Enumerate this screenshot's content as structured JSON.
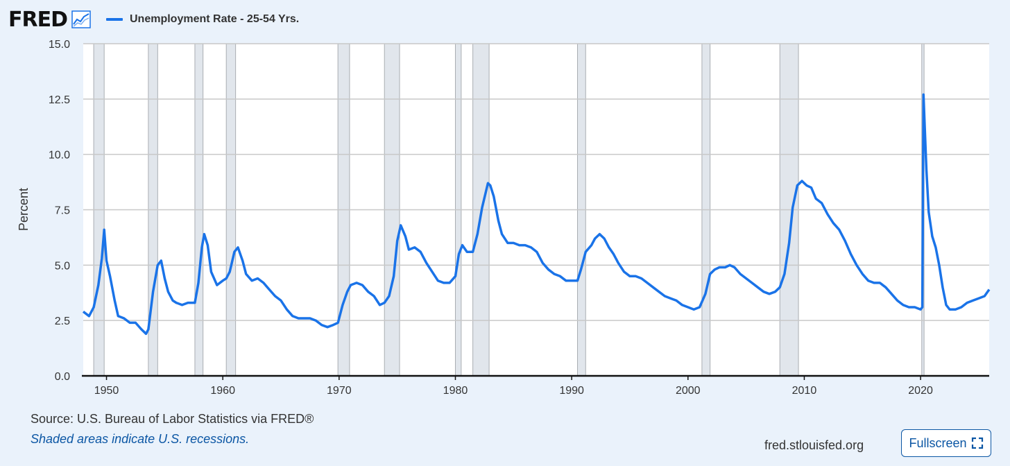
{
  "header": {
    "logo_text": "FRED",
    "logo_icon": "chart-line-icon",
    "legend_label": "Unemployment Rate - 25-54 Yrs."
  },
  "colors": {
    "series": "#1a73e8",
    "recession": "#e1e6ec",
    "background": "#eaf2fb",
    "plot": "#ffffff",
    "grid": "#c8c8c8"
  },
  "chart_data": {
    "type": "line",
    "title": "",
    "xlabel": "",
    "ylabel": "Percent",
    "xlim": [
      1948,
      2025.9
    ],
    "ylim": [
      0,
      15
    ],
    "y_ticks": [
      "0.0",
      "2.5",
      "5.0",
      "7.5",
      "10.0",
      "12.5",
      "15.0"
    ],
    "x_ticks": [
      "1950",
      "1960",
      "1970",
      "1980",
      "1990",
      "2000",
      "2010",
      "2020"
    ],
    "grid": true,
    "legend": "top-left",
    "recessions": [
      [
        1948.9,
        1949.8
      ],
      [
        1953.6,
        1954.4
      ],
      [
        1957.6,
        1958.3
      ],
      [
        1960.3,
        1961.1
      ],
      [
        1969.9,
        1970.9
      ],
      [
        1973.9,
        1975.2
      ],
      [
        1980.0,
        1980.5
      ],
      [
        1981.5,
        1982.9
      ],
      [
        1990.5,
        1991.2
      ],
      [
        2001.2,
        2001.9
      ],
      [
        2007.9,
        2009.5
      ],
      [
        2020.1,
        2020.3
      ]
    ],
    "series": [
      {
        "name": "Unemployment Rate - 25-54 Yrs.",
        "points": [
          [
            1948.0,
            2.9
          ],
          [
            1948.5,
            2.7
          ],
          [
            1948.9,
            3.1
          ],
          [
            1949.3,
            4.1
          ],
          [
            1949.6,
            5.3
          ],
          [
            1949.8,
            6.6
          ],
          [
            1950.0,
            5.2
          ],
          [
            1950.3,
            4.5
          ],
          [
            1950.7,
            3.4
          ],
          [
            1951.0,
            2.7
          ],
          [
            1951.5,
            2.6
          ],
          [
            1952.0,
            2.4
          ],
          [
            1952.5,
            2.4
          ],
          [
            1953.0,
            2.1
          ],
          [
            1953.4,
            1.9
          ],
          [
            1953.6,
            2.1
          ],
          [
            1954.0,
            3.8
          ],
          [
            1954.4,
            5.0
          ],
          [
            1954.7,
            5.2
          ],
          [
            1955.0,
            4.4
          ],
          [
            1955.3,
            3.8
          ],
          [
            1955.7,
            3.4
          ],
          [
            1956.0,
            3.3
          ],
          [
            1956.5,
            3.2
          ],
          [
            1957.0,
            3.3
          ],
          [
            1957.6,
            3.3
          ],
          [
            1957.9,
            4.2
          ],
          [
            1958.2,
            5.8
          ],
          [
            1958.4,
            6.4
          ],
          [
            1958.7,
            5.9
          ],
          [
            1959.0,
            4.7
          ],
          [
            1959.5,
            4.1
          ],
          [
            1960.0,
            4.3
          ],
          [
            1960.3,
            4.4
          ],
          [
            1960.6,
            4.7
          ],
          [
            1961.0,
            5.6
          ],
          [
            1961.3,
            5.8
          ],
          [
            1961.7,
            5.2
          ],
          [
            1962.0,
            4.6
          ],
          [
            1962.5,
            4.3
          ],
          [
            1963.0,
            4.4
          ],
          [
            1963.5,
            4.2
          ],
          [
            1964.0,
            3.9
          ],
          [
            1964.5,
            3.6
          ],
          [
            1965.0,
            3.4
          ],
          [
            1965.5,
            3.0
          ],
          [
            1966.0,
            2.7
          ],
          [
            1966.5,
            2.6
          ],
          [
            1967.0,
            2.6
          ],
          [
            1967.5,
            2.6
          ],
          [
            1968.0,
            2.5
          ],
          [
            1968.5,
            2.3
          ],
          [
            1969.0,
            2.2
          ],
          [
            1969.5,
            2.3
          ],
          [
            1969.9,
            2.4
          ],
          [
            1970.3,
            3.2
          ],
          [
            1970.7,
            3.8
          ],
          [
            1971.0,
            4.1
          ],
          [
            1971.5,
            4.2
          ],
          [
            1972.0,
            4.1
          ],
          [
            1972.5,
            3.8
          ],
          [
            1973.0,
            3.6
          ],
          [
            1973.5,
            3.2
          ],
          [
            1973.9,
            3.3
          ],
          [
            1974.3,
            3.6
          ],
          [
            1974.7,
            4.5
          ],
          [
            1975.0,
            6.1
          ],
          [
            1975.3,
            6.8
          ],
          [
            1975.7,
            6.3
          ],
          [
            1976.0,
            5.7
          ],
          [
            1976.5,
            5.8
          ],
          [
            1977.0,
            5.6
          ],
          [
            1977.5,
            5.1
          ],
          [
            1978.0,
            4.7
          ],
          [
            1978.5,
            4.3
          ],
          [
            1979.0,
            4.2
          ],
          [
            1979.5,
            4.2
          ],
          [
            1980.0,
            4.5
          ],
          [
            1980.3,
            5.5
          ],
          [
            1980.6,
            5.9
          ],
          [
            1981.0,
            5.6
          ],
          [
            1981.5,
            5.6
          ],
          [
            1981.9,
            6.4
          ],
          [
            1982.3,
            7.6
          ],
          [
            1982.8,
            8.7
          ],
          [
            1983.0,
            8.6
          ],
          [
            1983.3,
            8.1
          ],
          [
            1983.7,
            7.0
          ],
          [
            1984.0,
            6.4
          ],
          [
            1984.5,
            6.0
          ],
          [
            1985.0,
            6.0
          ],
          [
            1985.5,
            5.9
          ],
          [
            1986.0,
            5.9
          ],
          [
            1986.5,
            5.8
          ],
          [
            1987.0,
            5.6
          ],
          [
            1987.5,
            5.1
          ],
          [
            1988.0,
            4.8
          ],
          [
            1988.5,
            4.6
          ],
          [
            1989.0,
            4.5
          ],
          [
            1989.5,
            4.3
          ],
          [
            1990.0,
            4.3
          ],
          [
            1990.5,
            4.3
          ],
          [
            1990.8,
            4.8
          ],
          [
            1991.2,
            5.6
          ],
          [
            1991.7,
            5.9
          ],
          [
            1992.0,
            6.2
          ],
          [
            1992.4,
            6.4
          ],
          [
            1992.8,
            6.2
          ],
          [
            1993.2,
            5.8
          ],
          [
            1993.6,
            5.5
          ],
          [
            1994.0,
            5.1
          ],
          [
            1994.5,
            4.7
          ],
          [
            1995.0,
            4.5
          ],
          [
            1995.5,
            4.5
          ],
          [
            1996.0,
            4.4
          ],
          [
            1996.5,
            4.2
          ],
          [
            1997.0,
            4.0
          ],
          [
            1997.5,
            3.8
          ],
          [
            1998.0,
            3.6
          ],
          [
            1998.5,
            3.5
          ],
          [
            1999.0,
            3.4
          ],
          [
            1999.5,
            3.2
          ],
          [
            2000.0,
            3.1
          ],
          [
            2000.5,
            3.0
          ],
          [
            2001.0,
            3.1
          ],
          [
            2001.5,
            3.7
          ],
          [
            2001.9,
            4.6
          ],
          [
            2002.3,
            4.8
          ],
          [
            2002.7,
            4.9
          ],
          [
            2003.2,
            4.9
          ],
          [
            2003.6,
            5.0
          ],
          [
            2004.0,
            4.9
          ],
          [
            2004.5,
            4.6
          ],
          [
            2005.0,
            4.4
          ],
          [
            2005.5,
            4.2
          ],
          [
            2006.0,
            4.0
          ],
          [
            2006.5,
            3.8
          ],
          [
            2007.0,
            3.7
          ],
          [
            2007.5,
            3.8
          ],
          [
            2007.9,
            4.0
          ],
          [
            2008.3,
            4.6
          ],
          [
            2008.7,
            6.0
          ],
          [
            2009.0,
            7.6
          ],
          [
            2009.4,
            8.6
          ],
          [
            2009.8,
            8.8
          ],
          [
            2010.2,
            8.6
          ],
          [
            2010.6,
            8.5
          ],
          [
            2011.0,
            8.0
          ],
          [
            2011.5,
            7.8
          ],
          [
            2012.0,
            7.3
          ],
          [
            2012.5,
            6.9
          ],
          [
            2013.0,
            6.6
          ],
          [
            2013.5,
            6.1
          ],
          [
            2014.0,
            5.5
          ],
          [
            2014.5,
            5.0
          ],
          [
            2015.0,
            4.6
          ],
          [
            2015.5,
            4.3
          ],
          [
            2016.0,
            4.2
          ],
          [
            2016.5,
            4.2
          ],
          [
            2017.0,
            4.0
          ],
          [
            2017.5,
            3.7
          ],
          [
            2018.0,
            3.4
          ],
          [
            2018.5,
            3.2
          ],
          [
            2019.0,
            3.1
          ],
          [
            2019.5,
            3.1
          ],
          [
            2020.0,
            3.0
          ],
          [
            2020.15,
            3.1
          ],
          [
            2020.25,
            12.7
          ],
          [
            2020.35,
            11.3
          ],
          [
            2020.5,
            9.3
          ],
          [
            2020.7,
            7.4
          ],
          [
            2021.0,
            6.3
          ],
          [
            2021.3,
            5.8
          ],
          [
            2021.6,
            5.0
          ],
          [
            2021.9,
            4.0
          ],
          [
            2022.2,
            3.2
          ],
          [
            2022.5,
            3.0
          ],
          [
            2023.0,
            3.0
          ],
          [
            2023.5,
            3.1
          ],
          [
            2024.0,
            3.3
          ],
          [
            2024.5,
            3.4
          ],
          [
            2025.0,
            3.5
          ],
          [
            2025.5,
            3.6
          ],
          [
            2025.9,
            3.9
          ]
        ]
      }
    ]
  },
  "footer": {
    "source": "Source: U.S. Bureau of Labor Statistics via FRED®",
    "note": "Shaded areas indicate U.S. recessions.",
    "site": "fred.stlouisfed.org",
    "fullscreen_label": "Fullscreen",
    "fullscreen_icon": "fullscreen-icon"
  }
}
